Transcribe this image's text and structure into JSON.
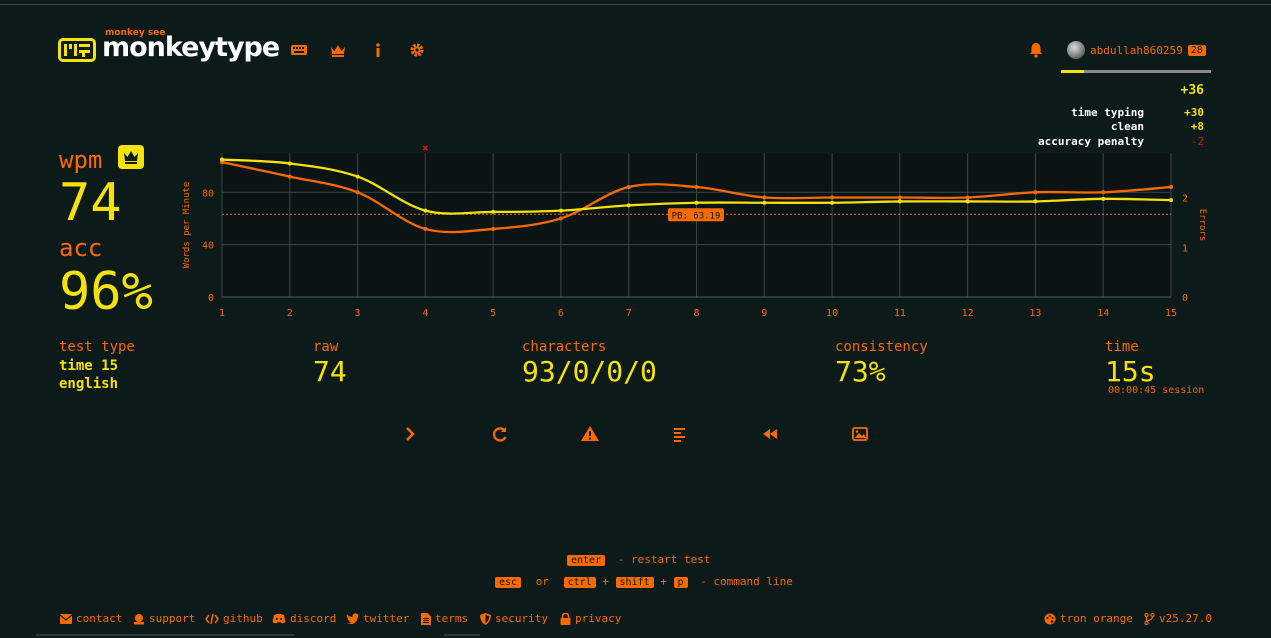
{
  "header": {
    "logo_small": "monkey see",
    "logo_text": "monkeytype",
    "nav_icons": [
      "keyboard-icon",
      "crown-icon",
      "info-icon",
      "gear-icon"
    ],
    "notification_icon": "bell-icon",
    "username": "abdullah860259",
    "level": "28",
    "xp_progress": 0.15
  },
  "xp": {
    "total": "+36",
    "breakdown": [
      {
        "label": "time typing",
        "value": "+30"
      },
      {
        "label": "clean",
        "value": "+8"
      },
      {
        "label": "accuracy penalty",
        "value": "-2"
      }
    ]
  },
  "result": {
    "wpm_label": "wpm",
    "wpm": "74",
    "acc_label": "acc",
    "acc": "96%"
  },
  "stats": {
    "test_type_label": "test type",
    "test_type_line1": "time 15",
    "test_type_line2": "english",
    "raw_label": "raw",
    "raw": "74",
    "characters_label": "characters",
    "characters": "93/0/0/0",
    "consistency_label": "consistency",
    "consistency": "73%",
    "time_label": "time",
    "time": "15s",
    "session": "00:00:45 session"
  },
  "chart_data": {
    "type": "line",
    "x": [
      1,
      2,
      3,
      4,
      5,
      6,
      7,
      8,
      9,
      10,
      11,
      12,
      13,
      14,
      15
    ],
    "ylabel": "Words per Minute",
    "y2label": "Errors",
    "ylim": [
      0,
      110
    ],
    "y2lim": [
      0,
      2.9
    ],
    "yticks": [
      0,
      40,
      80
    ],
    "y2ticks": [
      0,
      1,
      2
    ],
    "pb_label": "PB: 63.19",
    "pb_value": 63.19,
    "series": [
      {
        "name": "wpm",
        "color": "#f5e10c",
        "values": [
          105,
          102,
          92,
          66,
          65,
          66,
          70,
          72,
          72,
          72,
          73,
          73,
          73,
          75,
          74
        ]
      },
      {
        "name": "raw",
        "color": "#f86a00",
        "values": [
          103,
          92,
          80,
          52,
          52,
          60,
          84,
          84,
          76,
          76,
          76,
          76,
          80,
          80,
          84
        ]
      }
    ],
    "errors": [
      {
        "x": 4,
        "value": 3
      }
    ]
  },
  "buttons": [
    {
      "name": "next-test-button",
      "icon": "chevron-right-icon"
    },
    {
      "name": "restart-test-button",
      "icon": "refresh-icon"
    },
    {
      "name": "practice-words-button",
      "icon": "warning-icon"
    },
    {
      "name": "words-history-button",
      "icon": "align-left-icon"
    },
    {
      "name": "replay-button",
      "icon": "backward-icon"
    },
    {
      "name": "screenshot-button",
      "icon": "image-icon"
    }
  ],
  "hints": {
    "enter_key": "enter",
    "restart_text": "- restart test",
    "esc_key": "esc",
    "or_text": "or",
    "ctrl_key": "ctrl",
    "plus": "+",
    "shift_key": "shift",
    "p_key": "p",
    "command_text": "- command line"
  },
  "footer": {
    "links": [
      {
        "label": "contact",
        "icon": "envelope-icon"
      },
      {
        "label": "support",
        "icon": "donate-icon"
      },
      {
        "label": "github",
        "icon": "code-icon"
      },
      {
        "label": "discord",
        "icon": "discord-icon"
      },
      {
        "label": "twitter",
        "icon": "twitter-icon"
      },
      {
        "label": "terms",
        "icon": "file-icon"
      },
      {
        "label": "security",
        "icon": "shield-icon"
      },
      {
        "label": "privacy",
        "icon": "lock-icon"
      }
    ],
    "theme": "tron orange",
    "version": "v25.27.0"
  },
  "colors": {
    "background": "#0d1a1a",
    "main": "#f5e10c",
    "sub": "#f86a00",
    "error": "#d11a1a"
  }
}
